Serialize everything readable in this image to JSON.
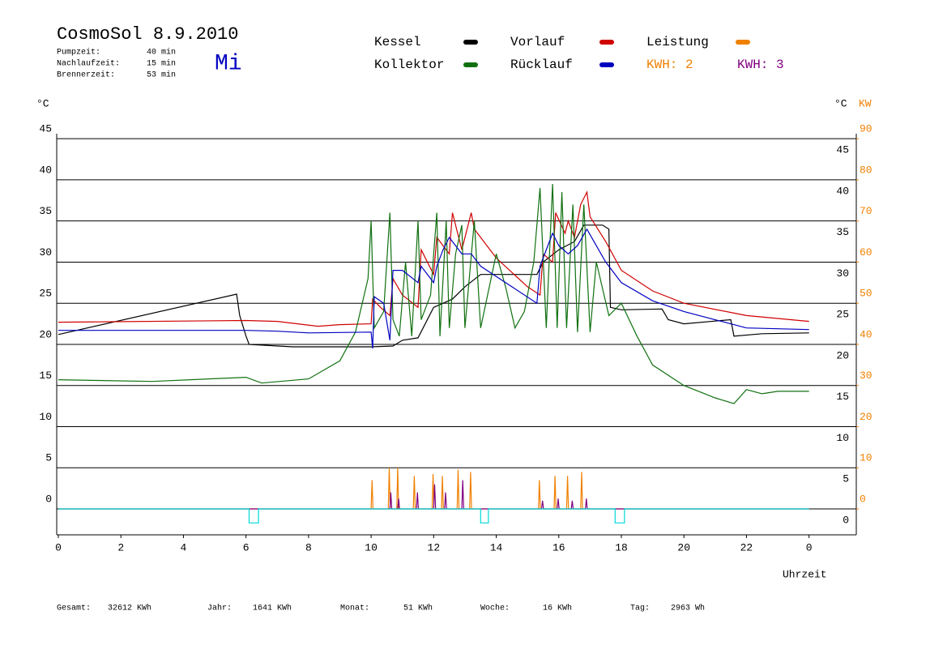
{
  "chart_data": {
    "type": "line",
    "title": "CosmoSol 8.9.2010",
    "info": [
      {
        "label": "Pumpzeit:",
        "value": "40 min"
      },
      {
        "label": "Nachlaufzeit:",
        "value": "15 min"
      },
      {
        "label": "Brennerzeit:",
        "value": "53 min"
      }
    ],
    "weekday": "Mi",
    "kwh_labels": [
      {
        "text": "KWH: 2",
        "color": "#f08000"
      },
      {
        "text": "KWH: 3",
        "color": "#800080"
      }
    ],
    "y_label": "°C",
    "y2_label_c": "°C",
    "y2_label": "KW",
    "x_label": "Uhrzeit",
    "footer": [
      {
        "label": "Gesamt:",
        "value": "32612 KWh"
      },
      {
        "label": "Jahr:",
        "value": "1641 KWh"
      },
      {
        "label": "Monat:",
        "value": "51 KWh"
      },
      {
        "label": "Woche:",
        "value": "16 KWh"
      },
      {
        "label": "Tag:",
        "value": "2963 Wh"
      }
    ],
    "xlim": [
      0,
      25.2
    ],
    "xticks": [
      0,
      2,
      4,
      6,
      8,
      10,
      12,
      14,
      16,
      18,
      20,
      22,
      {
        "value": 24,
        "label": "0"
      }
    ],
    "ylim": [
      -3,
      46
    ],
    "yticks": [
      0,
      5,
      10,
      15,
      20,
      25,
      30,
      35,
      40,
      45
    ],
    "y2lim": [
      -6,
      92
    ],
    "y2ticks": [
      0,
      10,
      20,
      30,
      40,
      50,
      60,
      70,
      80,
      90
    ],
    "grid": true,
    "series": [
      {
        "name": "Kessel",
        "color": "#000000",
        "x": [
          0,
          5.7,
          5.8,
          6.0,
          6.1,
          7.5,
          10,
          10.7,
          11,
          11.5,
          12.0,
          12.6,
          13.0,
          13.5,
          15.3,
          15.5,
          16.0,
          16.5,
          16.8,
          17.4,
          17.6,
          17.65,
          18,
          19.3,
          19.5,
          20,
          21.5,
          21.6,
          22.5,
          24
        ],
        "values": [
          21.2,
          26.1,
          23.5,
          21.0,
          20,
          19.7,
          19.7,
          19.8,
          20.5,
          20.8,
          24.5,
          25.5,
          27,
          28.5,
          28.5,
          30,
          31.5,
          32.5,
          34.5,
          34.5,
          34.0,
          24.5,
          24.2,
          24.3,
          23.0,
          22.5,
          23.0,
          21.0,
          21.3,
          21.4
        ]
      },
      {
        "name": "Vorlauf",
        "color": "#d00000",
        "x": [
          0,
          6,
          7,
          8.3,
          9,
          10,
          10.05,
          10.3,
          10.6,
          10.7,
          11,
          11.5,
          11.6,
          12,
          12.1,
          12.5,
          12.6,
          12.9,
          13.2,
          13.3,
          14,
          15,
          15.4,
          15.5,
          15.8,
          15.9,
          16.2,
          16.3,
          16.5,
          16.7,
          16.9,
          17,
          17.5,
          18,
          19,
          20,
          22,
          24
        ],
        "values": [
          22.7,
          22.9,
          22.8,
          22.2,
          22.4,
          22.5,
          25.5,
          24.5,
          23.5,
          28,
          26,
          24.5,
          31.5,
          28.5,
          33,
          31,
          36,
          31.5,
          36,
          34,
          30.5,
          27,
          26,
          31,
          30,
          36,
          33.5,
          35,
          33,
          37,
          38.5,
          35.5,
          32.5,
          29,
          26.5,
          25,
          23.5,
          22.8
        ]
      },
      {
        "name": "Leistung",
        "color": "#f08000",
        "axis": "y2",
        "x": [
          0,
          10,
          10.03,
          10.06,
          10.55,
          10.58,
          10.61,
          10.82,
          10.85,
          10.88,
          11.35,
          11.38,
          11.41,
          11.95,
          11.98,
          12.01,
          12.25,
          12.28,
          12.31,
          12.75,
          12.78,
          12.81,
          13.15,
          13.18,
          13.21,
          15.35,
          15.38,
          15.41,
          15.85,
          15.88,
          15.91,
          16.25,
          16.28,
          16.31,
          16.7,
          16.73,
          16.76,
          24
        ],
        "values": [
          0,
          0,
          7,
          0,
          0,
          10,
          0,
          0,
          10,
          0,
          0,
          8,
          0,
          0,
          8.5,
          0,
          0,
          8,
          0,
          0,
          9.5,
          0,
          0,
          9,
          0,
          0,
          7,
          0,
          0,
          8,
          0,
          0,
          8,
          0,
          0,
          9,
          0,
          0
        ]
      },
      {
        "name": "Kollektor",
        "color": "#107010",
        "x": [
          0,
          3,
          6,
          6.5,
          8,
          9,
          9.5,
          9.9,
          10,
          10.1,
          10.4,
          10.6,
          10.7,
          10.9,
          11.1,
          11.3,
          11.5,
          11.6,
          11.9,
          12.1,
          12.2,
          12.4,
          12.5,
          12.7,
          12.9,
          13.0,
          13.3,
          13.5,
          14,
          14.3,
          14.6,
          14.9,
          15.2,
          15.4,
          15.6,
          15.8,
          15.95,
          16.1,
          16.25,
          16.45,
          16.6,
          16.8,
          17.0,
          17.2,
          17.6,
          18,
          18.5,
          19,
          20,
          21,
          21.6,
          22,
          22.5,
          23,
          24
        ],
        "values": [
          15.7,
          15.5,
          16.0,
          15.3,
          15.8,
          18,
          21.5,
          28,
          35,
          22,
          24,
          36,
          23,
          21,
          30,
          21,
          35,
          23,
          26,
          36,
          21,
          35,
          22,
          31,
          34.5,
          22,
          35,
          22,
          31,
          27,
          22,
          24,
          30,
          39,
          22,
          39.5,
          22,
          38.5,
          22,
          37,
          21.5,
          37,
          21.5,
          30,
          23.5,
          25,
          21,
          17.5,
          15,
          13.5,
          12.8,
          14.5,
          14.0,
          14.3,
          14.3
        ]
      },
      {
        "name": "Rücklauf",
        "color": "#0000c0",
        "x": [
          0,
          6,
          7,
          8,
          10,
          10.05,
          10.1,
          10.4,
          10.6,
          10.7,
          11,
          11.5,
          11.6,
          12,
          12.1,
          12.3,
          12.5,
          12.9,
          13.2,
          13.5,
          14.5,
          15.3,
          15.4,
          15.8,
          16,
          16.3,
          16.6,
          16.9,
          17.5,
          18,
          19,
          20,
          22,
          24
        ],
        "values": [
          21.7,
          21.7,
          21.6,
          21.4,
          21.5,
          19.5,
          25.8,
          25,
          20.5,
          29,
          29,
          27.5,
          29.5,
          27.5,
          29.5,
          31.5,
          33,
          31,
          31,
          29.5,
          27,
          25,
          29.5,
          33.5,
          32,
          31,
          32,
          34,
          30,
          27.5,
          25.3,
          24,
          22,
          21.8
        ]
      },
      {
        "color": "#800080",
        "axis": "y2",
        "x": [
          0,
          10.6,
          10.63,
          10.66,
          10.85,
          10.88,
          10.91,
          11.45,
          11.48,
          11.51,
          12.0,
          12.03,
          12.06,
          12.35,
          12.38,
          12.41,
          12.9,
          12.93,
          12.96,
          15.45,
          15.48,
          15.51,
          15.95,
          15.98,
          16.01,
          16.4,
          16.43,
          16.46,
          16.85,
          16.88,
          16.91,
          24
        ],
        "values": [
          0,
          0,
          4,
          0,
          0,
          2.5,
          0,
          0,
          4,
          0,
          0,
          6,
          0,
          0,
          4,
          0,
          0,
          7,
          0,
          0,
          2,
          0,
          0,
          2.5,
          0,
          0,
          2,
          0,
          0,
          2.5,
          0,
          0
        ]
      },
      {
        "color": "#00d8d8",
        "x": [
          0,
          6.1,
          6.1,
          6.4,
          6.4,
          13.5,
          13.5,
          13.75,
          13.75,
          17.8,
          17.8,
          18.1,
          18.1,
          24
        ],
        "values": [
          0,
          0,
          -1.7,
          -1.7,
          0,
          0,
          -1.7,
          -1.7,
          0,
          0,
          -1.7,
          -1.7,
          0,
          0
        ]
      }
    ]
  }
}
